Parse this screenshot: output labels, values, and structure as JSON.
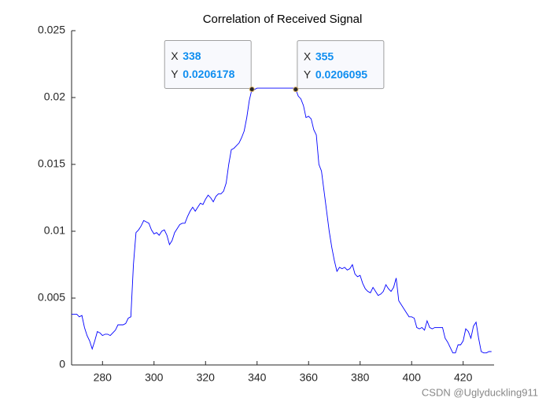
{
  "chart_data": {
    "type": "line",
    "title": "Correlation of Received Signal",
    "x": [
      268,
      269,
      270,
      271,
      272,
      273,
      274,
      275,
      276,
      277,
      278,
      279,
      280,
      281,
      282,
      283,
      284,
      285,
      286,
      287,
      288,
      289,
      290,
      291,
      292,
      293,
      294,
      295,
      296,
      297,
      298,
      299,
      300,
      301,
      302,
      303,
      304,
      305,
      306,
      307,
      308,
      309,
      310,
      311,
      312,
      313,
      314,
      315,
      316,
      317,
      318,
      319,
      320,
      321,
      322,
      323,
      324,
      325,
      326,
      327,
      328,
      329,
      330,
      331,
      332,
      333,
      334,
      335,
      336,
      337,
      338,
      339,
      340,
      341,
      342,
      343,
      344,
      345,
      346,
      347,
      348,
      349,
      350,
      351,
      352,
      353,
      354,
      355,
      356,
      357,
      358,
      359,
      360,
      361,
      362,
      363,
      364,
      365,
      366,
      367,
      368,
      369,
      370,
      371,
      372,
      373,
      374,
      375,
      376,
      377,
      378,
      379,
      380,
      381,
      382,
      383,
      384,
      385,
      386,
      387,
      388,
      389,
      390,
      391,
      392,
      393,
      394,
      395,
      396,
      397,
      398,
      399,
      400,
      401,
      402,
      403,
      404,
      405,
      406,
      407,
      408,
      409,
      410,
      411,
      412,
      413,
      414,
      415,
      416,
      417,
      418,
      419,
      420,
      421,
      422,
      423,
      424,
      425,
      426,
      427,
      428,
      429,
      430,
      431
    ],
    "values": [
      0.0038,
      0.0038,
      0.0038,
      0.0036,
      0.0037,
      0.0028,
      0.0022,
      0.0018,
      0.0012,
      0.0018,
      0.0025,
      0.0024,
      0.0022,
      0.0023,
      0.0023,
      0.0022,
      0.0024,
      0.0026,
      0.003,
      0.003,
      0.003,
      0.0031,
      0.0035,
      0.0036,
      0.0075,
      0.0099,
      0.0101,
      0.0104,
      0.0108,
      0.0107,
      0.0106,
      0.0101,
      0.0098,
      0.0099,
      0.0097,
      0.01,
      0.0101,
      0.0097,
      0.009,
      0.0093,
      0.0099,
      0.0102,
      0.0105,
      0.0106,
      0.0106,
      0.0111,
      0.0115,
      0.0118,
      0.0115,
      0.0118,
      0.0121,
      0.012,
      0.0124,
      0.0127,
      0.0125,
      0.0122,
      0.0126,
      0.0128,
      0.0128,
      0.013,
      0.0136,
      0.015,
      0.0161,
      0.0162,
      0.0164,
      0.0166,
      0.017,
      0.0175,
      0.0185,
      0.0198,
      0.0206178,
      0.0206,
      0.0207,
      0.0207,
      0.0207,
      0.0207,
      0.0207,
      0.0207,
      0.0207,
      0.0207,
      0.0207,
      0.0207,
      0.0207,
      0.0207,
      0.0207,
      0.0207,
      0.0207,
      0.0206095,
      0.0201,
      0.0199,
      0.0194,
      0.0185,
      0.0186,
      0.0184,
      0.0176,
      0.0172,
      0.015,
      0.0145,
      0.013,
      0.0115,
      0.01,
      0.0088,
      0.0078,
      0.007,
      0.0073,
      0.0072,
      0.0073,
      0.0071,
      0.0072,
      0.0075,
      0.0068,
      0.0066,
      0.0067,
      0.0061,
      0.0057,
      0.0055,
      0.0054,
      0.0058,
      0.0055,
      0.0052,
      0.0053,
      0.0055,
      0.006,
      0.0057,
      0.0055,
      0.0058,
      0.0065,
      0.0048,
      0.0045,
      0.0042,
      0.0039,
      0.0036,
      0.0036,
      0.0035,
      0.0028,
      0.0027,
      0.0028,
      0.0026,
      0.0033,
      0.0028,
      0.0027,
      0.0028,
      0.0028,
      0.0028,
      0.0028,
      0.002,
      0.0017,
      0.0013,
      0.0009,
      0.0009,
      0.0015,
      0.0015,
      0.0018,
      0.0027,
      0.0025,
      0.002,
      0.0029,
      0.0032,
      0.002,
      0.001,
      0.0009,
      0.0009,
      0.001,
      0.001
    ],
    "color": "#0000ff",
    "xlim": [
      268,
      432
    ],
    "xticks": [
      280,
      300,
      320,
      340,
      360,
      380,
      400,
      420
    ],
    "ylim": [
      0,
      0.025
    ],
    "yticks": [
      0,
      0.005,
      0.01,
      0.015,
      0.02,
      0.025
    ],
    "datatips": [
      {
        "x_label": "X",
        "x": 338,
        "y_label": "Y",
        "y": 0.0206178
      },
      {
        "x_label": "X",
        "x": 355,
        "y_label": "Y",
        "y": 0.0206095
      }
    ],
    "watermark": "CSDN @Uglyduckling911"
  }
}
